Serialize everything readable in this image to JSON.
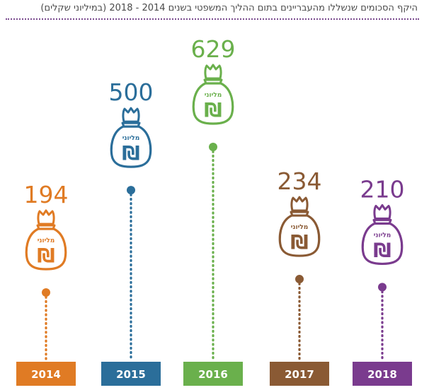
{
  "title": "היקף הסכומים שנשללו מהעבריינים בתום ההליך המשפטי בשנים 2014 - 2018 (במיליוני שקלים)",
  "bag_word": "מליוני",
  "bag_symbol": "₪",
  "colors": [
    "#e07b24",
    "#2b6e9a",
    "#6ab04c",
    "#8a5a34",
    "#7a3b8e"
  ],
  "chart_data": {
    "type": "bar",
    "title": "היקף הסכומים שנשללו מהעבריינים בתום ההליך המשפטי בשנים 2014 - 2018 (במיליוני שקלים)",
    "categories": [
      "2014",
      "2015",
      "2016",
      "2017",
      "2018"
    ],
    "values": [
      194,
      500,
      629,
      234,
      210
    ],
    "xlabel": "",
    "ylabel": "",
    "ylim": [
      0,
      700
    ]
  }
}
